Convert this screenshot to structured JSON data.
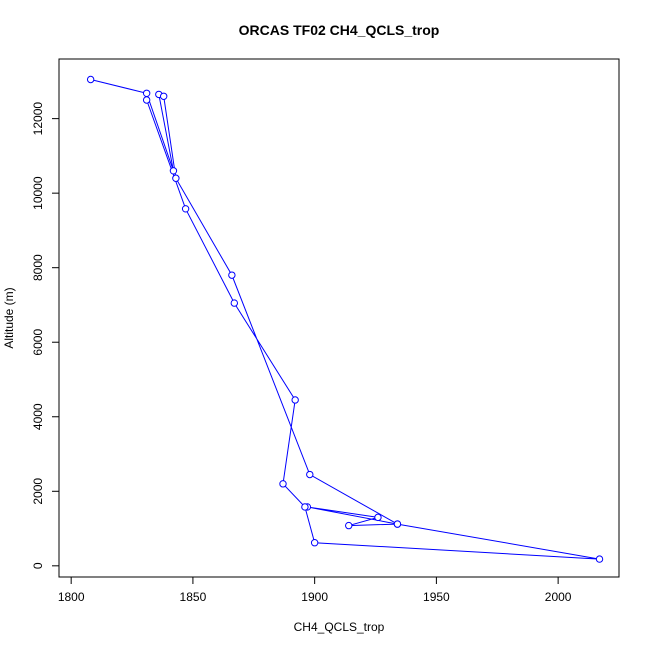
{
  "chart_data": {
    "type": "line",
    "title": "ORCAS TF02 CH4_QCLS_trop",
    "xlabel": "CH4_QCLS_trop",
    "ylabel": "Altitude (m)",
    "xlim": [
      1795,
      2025
    ],
    "ylim": [
      -300,
      13600
    ],
    "xticks": [
      1800,
      1850,
      1900,
      1950,
      2000
    ],
    "yticks": [
      0,
      2000,
      4000,
      6000,
      8000,
      10000,
      12000
    ],
    "grid": false,
    "color": "#0000ff",
    "marker": "open-circle",
    "series": [
      {
        "points": [
          {
            "x": 1808,
            "y": 13050
          },
          {
            "x": 1831,
            "y": 12680
          },
          {
            "x": 1842,
            "y": 10600
          },
          {
            "x": 1836,
            "y": 12650
          },
          {
            "x": 1838,
            "y": 12600
          },
          {
            "x": 1843,
            "y": 10400
          },
          {
            "x": 1866,
            "y": 7800
          },
          {
            "x": 1898,
            "y": 2450
          },
          {
            "x": 1934,
            "y": 1120
          },
          {
            "x": 1897,
            "y": 1580
          },
          {
            "x": 1926,
            "y": 1300
          },
          {
            "x": 1914,
            "y": 1080
          },
          {
            "x": 1934,
            "y": 1120
          },
          {
            "x": 2017,
            "y": 180
          },
          {
            "x": 1900,
            "y": 620
          },
          {
            "x": 1896,
            "y": 1580
          },
          {
            "x": 1887,
            "y": 2200
          },
          {
            "x": 1892,
            "y": 4450
          },
          {
            "x": 1867,
            "y": 7050
          },
          {
            "x": 1847,
            "y": 9580
          },
          {
            "x": 1831,
            "y": 12500
          }
        ]
      }
    ]
  }
}
